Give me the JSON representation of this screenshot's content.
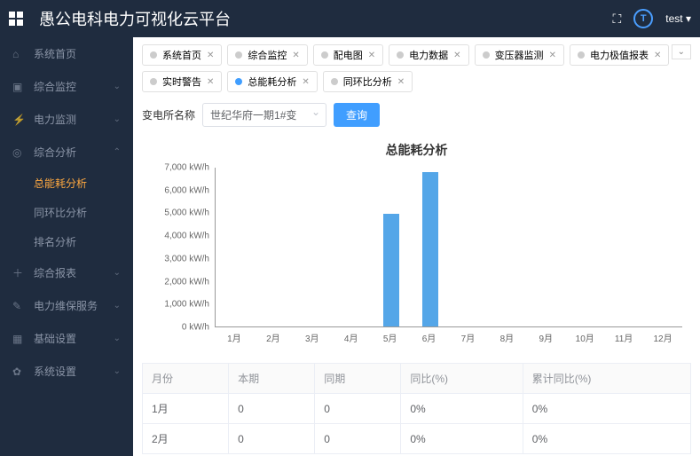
{
  "header": {
    "title": "愚公电科电力可视化云平台",
    "user": "test ▾"
  },
  "sidebar": {
    "items": [
      {
        "icon": "⌂",
        "label": "系统首页",
        "chev": ""
      },
      {
        "icon": "▣",
        "label": "综合监控",
        "chev": "⌄"
      },
      {
        "icon": "⚡",
        "label": "电力监测",
        "chev": "⌄"
      },
      {
        "icon": "◎",
        "label": "综合分析",
        "chev": "⌃",
        "expanded": true,
        "subs": [
          {
            "label": "总能耗分析",
            "active": true
          },
          {
            "label": "同环比分析",
            "active": false
          },
          {
            "label": "排名分析",
            "active": false
          }
        ]
      },
      {
        "icon": "＋",
        "label": "综合报表",
        "chev": "⌄"
      },
      {
        "icon": "✎",
        "label": "电力维保服务",
        "chev": "⌄"
      },
      {
        "icon": "▦",
        "label": "基础设置",
        "chev": "⌄"
      },
      {
        "icon": "✿",
        "label": "系统设置",
        "chev": "⌄"
      }
    ]
  },
  "tabs": [
    {
      "label": "系统首页",
      "active": false
    },
    {
      "label": "综合监控",
      "active": false
    },
    {
      "label": "配电图",
      "active": false
    },
    {
      "label": "电力数据",
      "active": false
    },
    {
      "label": "变压器监测",
      "active": false
    },
    {
      "label": "电力极值报表",
      "active": false
    },
    {
      "label": "实时警告",
      "active": false
    },
    {
      "label": "总能耗分析",
      "active": true
    },
    {
      "label": "同环比分析",
      "active": false
    }
  ],
  "filter": {
    "label": "变电所名称",
    "selected": "世纪华府一期1#变",
    "query_btn": "查询"
  },
  "chart": {
    "type": "bar",
    "title": "总能耗分析",
    "y_unit": "kW/h",
    "ylim": [
      0,
      7000
    ],
    "ytick_step": 1000,
    "categories": [
      "1月",
      "2月",
      "3月",
      "4月",
      "5月",
      "6月",
      "7月",
      "8月",
      "9月",
      "10月",
      "11月",
      "12月"
    ],
    "values": [
      0,
      0,
      0,
      0,
      4950,
      6750,
      0,
      0,
      0,
      0,
      0,
      0
    ],
    "bar_color": "#54a6e8",
    "axis_color": "#999999",
    "label_fontsize": 10
  },
  "table": {
    "columns": [
      "月份",
      "本期",
      "同期",
      "同比(%)",
      "累计同比(%)"
    ],
    "rows": [
      [
        "1月",
        "0",
        "0",
        "0%",
        "0%"
      ],
      [
        "2月",
        "0",
        "0",
        "0%",
        "0%"
      ]
    ]
  }
}
